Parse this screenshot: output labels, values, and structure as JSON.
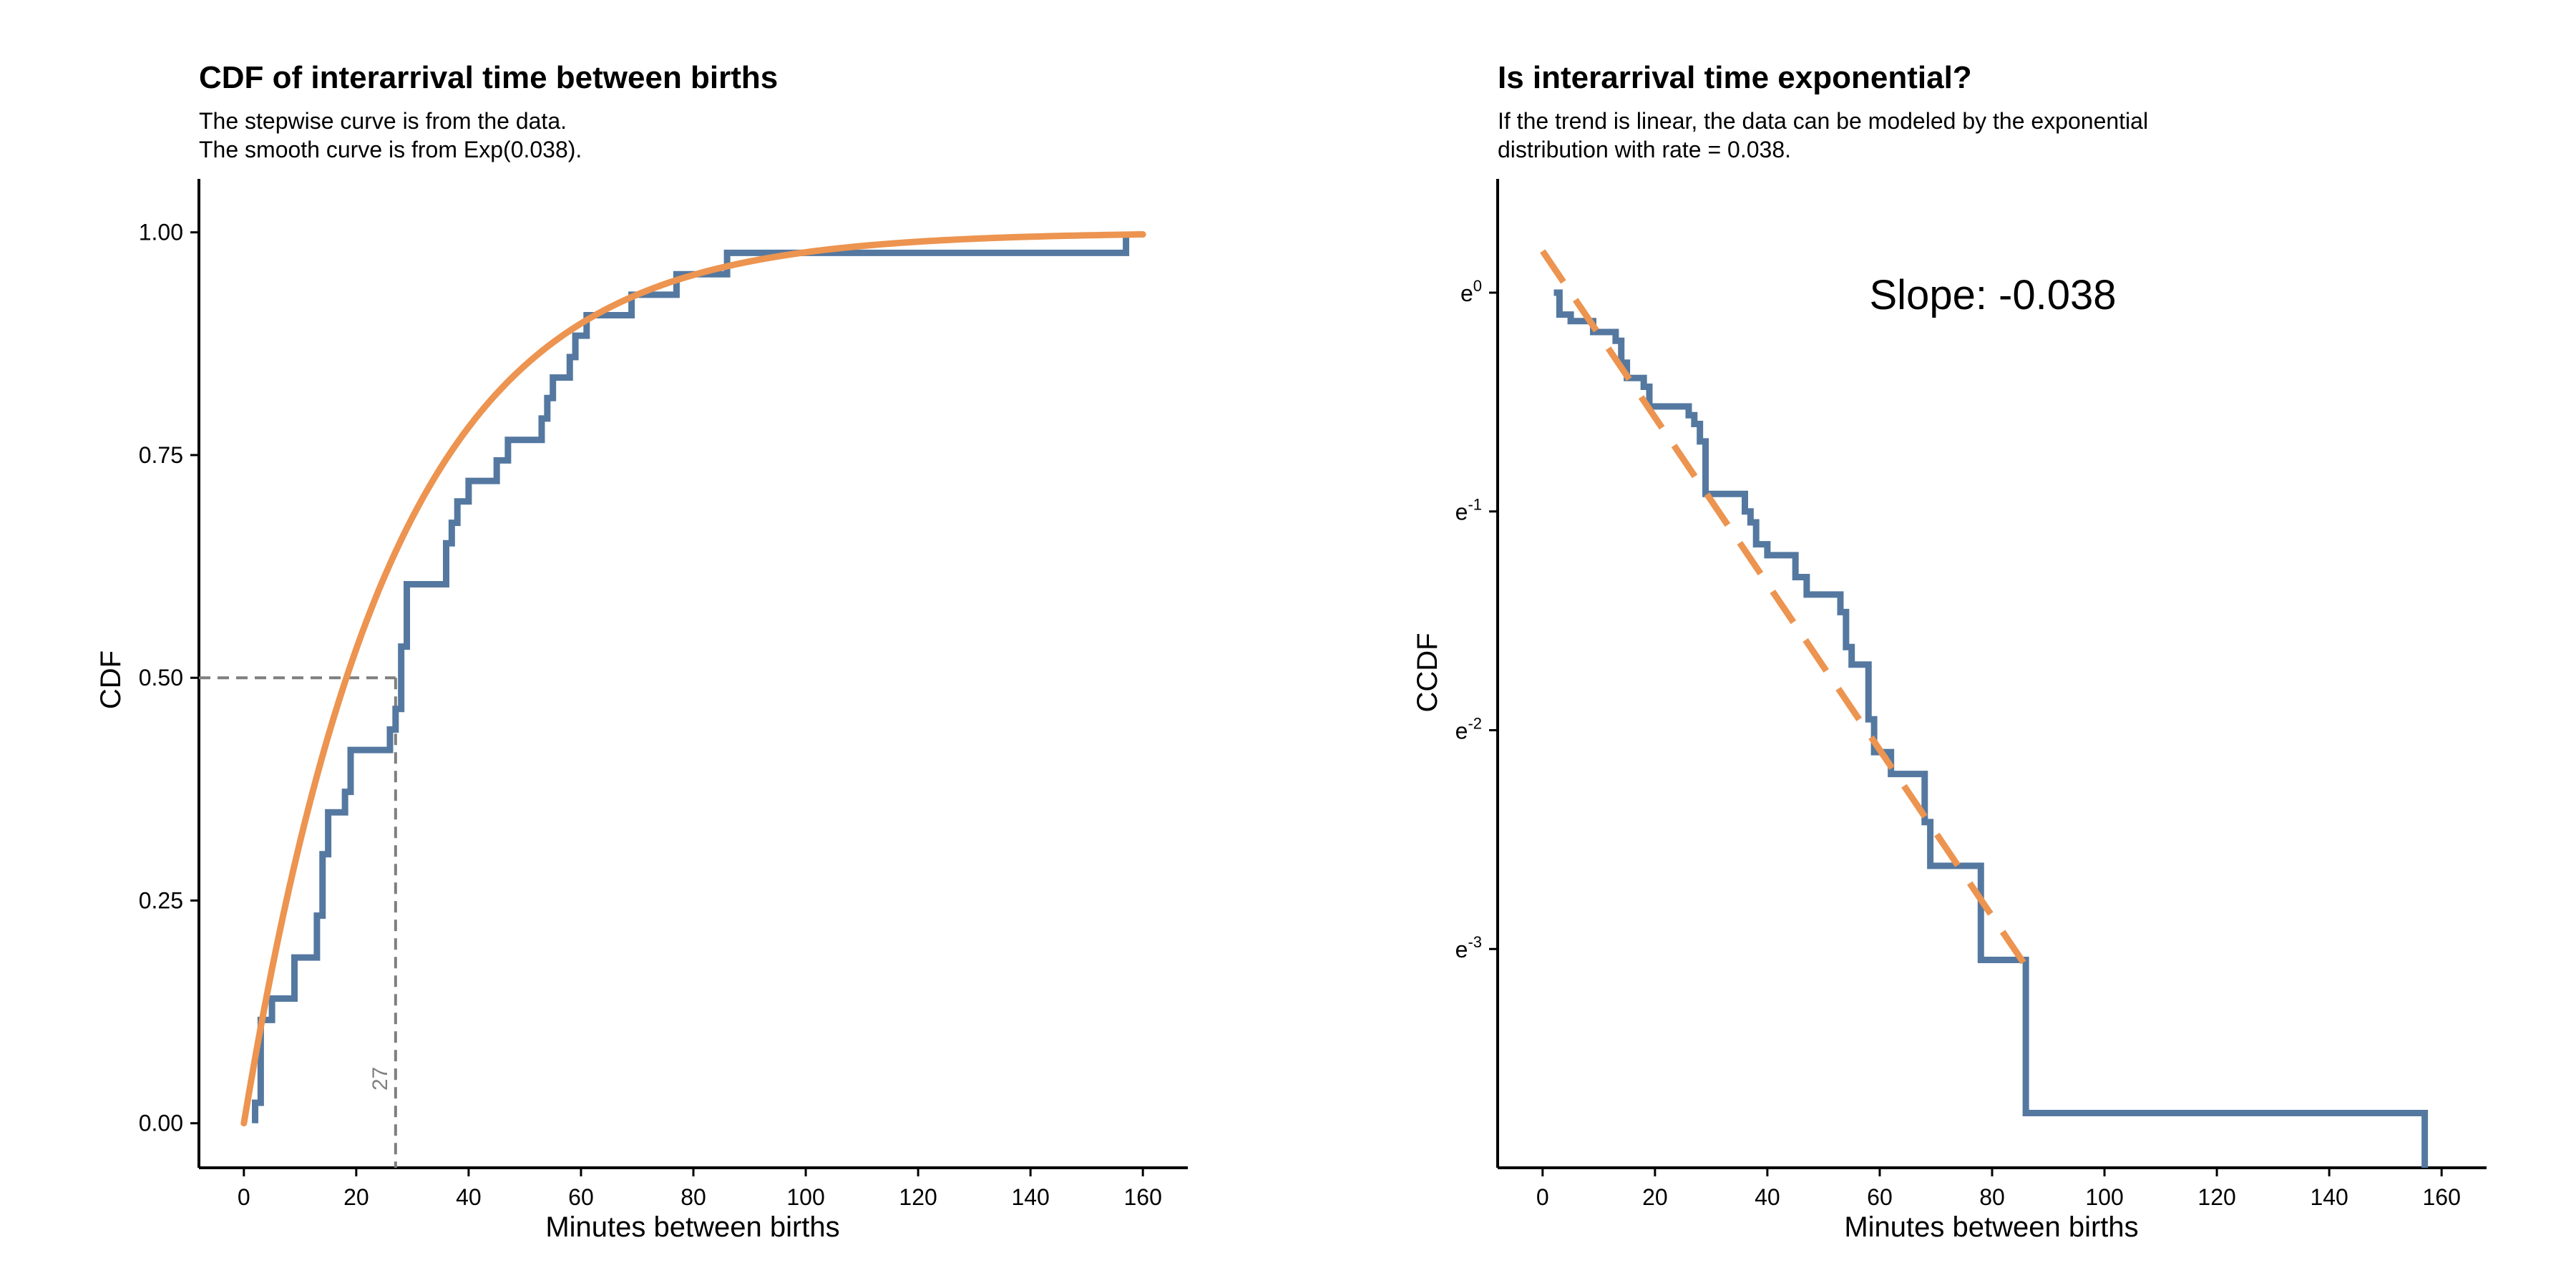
{
  "colors": {
    "empirical": "#5478A0",
    "model": "#EC9450",
    "reference": "#7F7F7F",
    "axis": "#000000"
  },
  "chart_data": [
    {
      "type": "line",
      "title": "CDF of interarrival time between births",
      "subtitle_lines": [
        "The stepwise curve is from the data.",
        "The smooth curve is from Exp(0.038)."
      ],
      "xlabel": "Minutes between births",
      "ylabel": "CDF",
      "xlim": [
        -8,
        168
      ],
      "ylim": [
        -0.05,
        1.06
      ],
      "x_ticks": [
        0,
        20,
        40,
        60,
        80,
        100,
        120,
        140,
        160
      ],
      "x_tick_labels": [
        "0",
        "20",
        "40",
        "60",
        "80",
        "100",
        "120",
        "140",
        "160"
      ],
      "y_ticks": [
        0,
        0.25,
        0.5,
        0.75,
        1.0
      ],
      "y_tick_labels": [
        "0.00",
        "0.25",
        "0.50",
        "0.75",
        "1.00"
      ],
      "grid": false,
      "series": [
        {
          "kind": "step",
          "x": [
            2,
            3,
            5,
            9,
            13,
            14,
            15,
            18,
            19,
            26,
            27,
            28,
            29,
            36,
            37,
            38,
            40,
            45,
            47,
            53,
            54,
            55,
            58,
            59,
            61,
            62,
            63,
            64,
            68,
            69,
            70,
            77,
            78,
            86,
            157
          ],
          "y": [
            0.023,
            0.116,
            0.14,
            0.186,
            0.233,
            0.302,
            0.349,
            0.372,
            0.419,
            0.442,
            0.465,
            0.535,
            0.605,
            0.651,
            0.674,
            0.698,
            0.721,
            0.744,
            0.767,
            0.791,
            0.814,
            0.837,
            0.86,
            0.884,
            0.907,
            0.907,
            0.907,
            0.907,
            0.907,
            0.93,
            0.93,
            0.953,
            0.953,
            0.977,
            1.0
          ]
        },
        {
          "kind": "curve",
          "function": "1 - exp(-0.038 * x)",
          "rate": 0.038,
          "x_range": [
            0,
            160
          ]
        }
      ],
      "reference_lines": {
        "y_value": 0.5,
        "x_value": 27,
        "x_value_label": "27"
      }
    },
    {
      "type": "line",
      "title": "Is interarrival time exponential?",
      "subtitle_lines": [
        "If the trend is linear, the data can be modeled by the exponential",
        "distribution with rate = 0.038."
      ],
      "xlabel": "Minutes between births",
      "ylabel": "CCDF",
      "y_scale": "log",
      "xlim": [
        -8,
        168
      ],
      "ylim_ln": [
        -4.0,
        0.52
      ],
      "x_ticks": [
        0,
        20,
        40,
        60,
        80,
        100,
        120,
        140,
        160
      ],
      "x_tick_labels": [
        "0",
        "20",
        "40",
        "60",
        "80",
        "100",
        "120",
        "140",
        "160"
      ],
      "y_ticks_ln": [
        0,
        -1,
        -2,
        -3
      ],
      "y_tick_base": "e",
      "y_tick_exponents": [
        "0",
        "-1",
        "-2",
        "-3"
      ],
      "grid": false,
      "annotation": "Slope: -0.038",
      "series": [
        {
          "kind": "step",
          "x": [
            2,
            3,
            5,
            9,
            13,
            14,
            15,
            18,
            19,
            26,
            27,
            28,
            29,
            36,
            37,
            38,
            40,
            45,
            47,
            53,
            54,
            55,
            58,
            59,
            61,
            62,
            68,
            69,
            77,
            78,
            86,
            157
          ],
          "y_ln": [
            0,
            -0.1,
            -0.13,
            -0.18,
            -0.22,
            -0.32,
            -0.39,
            -0.43,
            -0.52,
            -0.56,
            -0.6,
            -0.68,
            -0.92,
            -1.0,
            -1.05,
            -1.15,
            -1.2,
            -1.3,
            -1.38,
            -1.46,
            -1.62,
            -1.7,
            -1.95,
            -2.1,
            -2.1,
            -2.2,
            -2.42,
            -2.62,
            -2.62,
            -3.05,
            -3.75,
            -3.75
          ]
        },
        {
          "kind": "dashed_line",
          "slope": -0.038,
          "intercept_ln": 0.19,
          "x_range": [
            0,
            86
          ]
        }
      ]
    }
  ]
}
